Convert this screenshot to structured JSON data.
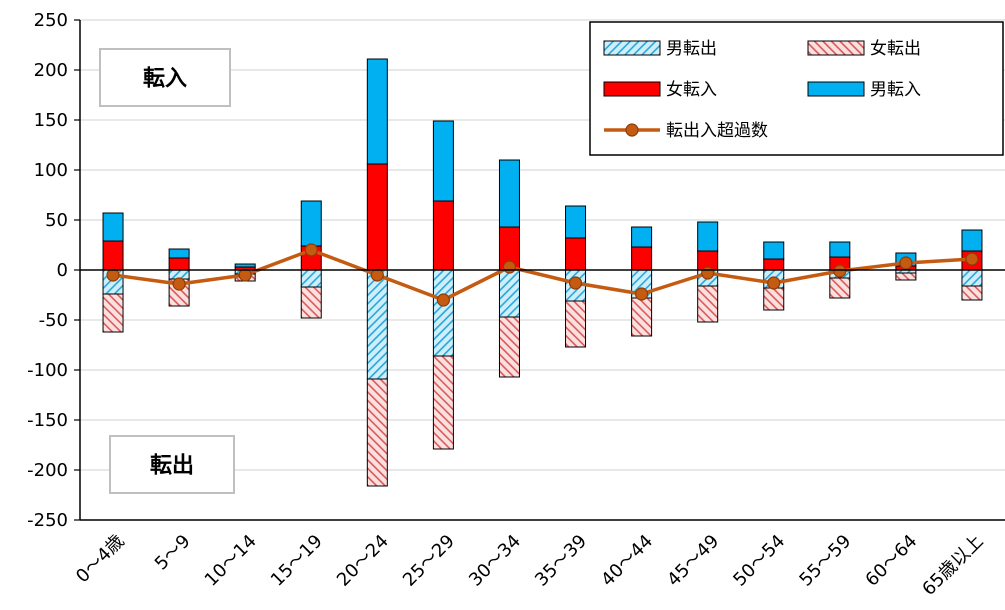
{
  "chart_data": {
    "type": "bar",
    "categories": [
      "0～4歳",
      "5～9",
      "10～14",
      "15～19",
      "20～24",
      "25～29",
      "30～34",
      "35～39",
      "40～44",
      "45～49",
      "50～54",
      "55～59",
      "60～64",
      "65歳以上"
    ],
    "ylim": [
      -250,
      250
    ],
    "yticks": [
      -250,
      -200,
      -150,
      -100,
      -50,
      0,
      50,
      100,
      150,
      200,
      250
    ],
    "grid": true,
    "legend_position": "top-right",
    "series": [
      {
        "name": "男転出",
        "kind": "bar",
        "stack": "out",
        "values": [
          -24,
          -9,
          -4,
          -17,
          -109,
          -86,
          -47,
          -31,
          -28,
          -16,
          -18,
          -8,
          -3,
          -16
        ],
        "color": "#3fb8e6",
        "pattern": "hatch-blue"
      },
      {
        "name": "女転出",
        "kind": "bar",
        "stack": "out",
        "values": [
          -38,
          -27,
          -7,
          -31,
          -107,
          -93,
          -60,
          -46,
          -38,
          -36,
          -22,
          -20,
          -7,
          -14
        ],
        "color": "#e36b6b",
        "pattern": "hatch-red"
      },
      {
        "name": "女転入",
        "kind": "bar",
        "stack": "in",
        "values": [
          29,
          12,
          3,
          24,
          106,
          69,
          43,
          32,
          23,
          19,
          11,
          13,
          4,
          19
        ],
        "color": "#ff0000"
      },
      {
        "name": "男転入",
        "kind": "bar",
        "stack": "in",
        "values": [
          28,
          9,
          3,
          45,
          105,
          80,
          67,
          32,
          20,
          29,
          17,
          15,
          13,
          21
        ],
        "color": "#00b0f0"
      },
      {
        "name": "転出入超過数",
        "kind": "line",
        "values": [
          -5,
          -14,
          -5,
          20,
          -5,
          -30,
          3,
          -13,
          -24,
          -3,
          -13,
          -1,
          7,
          11
        ],
        "color": "#c55a11"
      }
    ],
    "annotations": [
      {
        "label": "転入"
      },
      {
        "label": "転出"
      }
    ]
  }
}
